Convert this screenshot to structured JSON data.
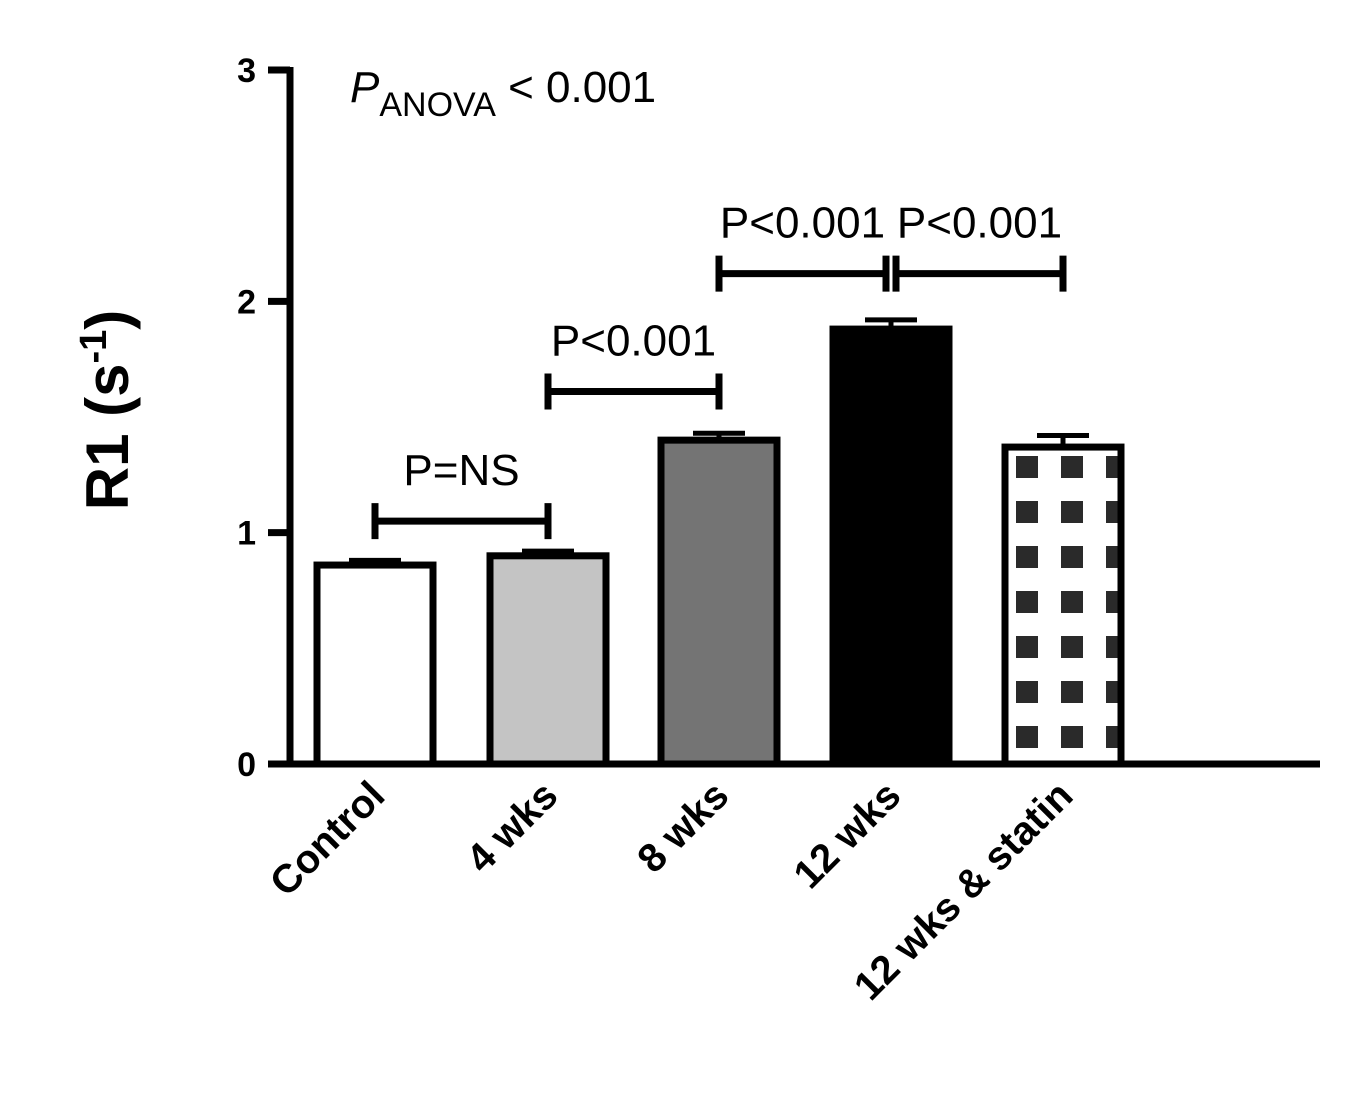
{
  "chart_data": {
    "type": "bar",
    "categories": [
      "Control",
      "4 wks",
      "8 wks",
      "12 wks",
      "12 wks & statin"
    ],
    "values": [
      0.86,
      0.9,
      1.4,
      1.88,
      1.37
    ],
    "errors": [
      0.02,
      0.02,
      0.03,
      0.04,
      0.05
    ],
    "bar_fills": [
      "#ffffff",
      "#c4c4c4",
      "#747474",
      "#000000",
      "checker"
    ],
    "ylabel_main": "R1 (s",
    "ylabel_sup": "-1",
    "ylabel_end": ")",
    "ylim": [
      0,
      3
    ],
    "yticks": [
      "0",
      "1",
      "2",
      "3"
    ],
    "grid": false,
    "overall_test": {
      "p_symbol": "P",
      "p_subscript": "ANOVA",
      "text": " < 0.001"
    },
    "comparisons": [
      {
        "from": 0,
        "to": 1,
        "label": "P=NS",
        "y": 1.05
      },
      {
        "from": 1,
        "to": 2,
        "label": "P<0.001",
        "y": 1.61
      },
      {
        "from": 2,
        "to": 3,
        "label": "P<0.001",
        "y": 2.12
      },
      {
        "from": 3,
        "to": 4,
        "label": "P<0.001",
        "y": 2.12
      }
    ]
  }
}
